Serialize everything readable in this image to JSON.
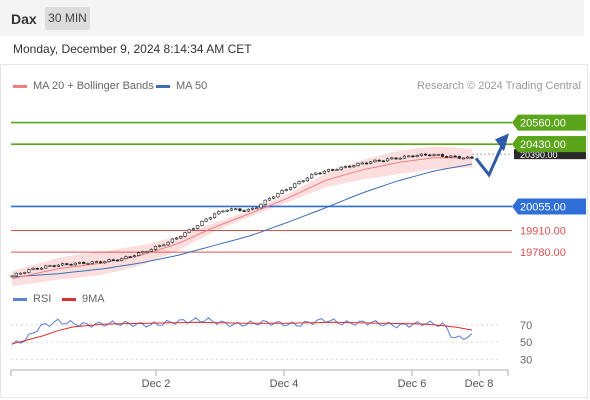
{
  "header": {
    "symbol": "Dax",
    "timeframe": "30 MIN"
  },
  "timestamp": "Monday, December 9, 2024 8:14:34 AM CET",
  "legend": {
    "ma20": "MA 20 + Bollinger Bands",
    "ma50": "MA 50",
    "credit": "Research © 2024 Trading Central"
  },
  "rsi_legend": {
    "rsi": "RSI",
    "ma": "9MA"
  },
  "colors": {
    "up": "#5aa51a",
    "ma20": "#f08080",
    "ma50": "#3a6fb5",
    "support": "#e05050",
    "pivot": "#2f6fd8",
    "rsi": "#5b7fd6",
    "rsi_ma": "#d93030",
    "band": "#fcdede"
  },
  "chart_data": {
    "type": "candlestick",
    "title": "Dax",
    "ylim": [
      19600,
      20720
    ],
    "levels": [
      {
        "value": 20560,
        "label": "20560.00",
        "kind": "resistance"
      },
      {
        "value": 20430,
        "label": "20430.00",
        "kind": "resistance"
      },
      {
        "value": 20055,
        "label": "20055.00",
        "kind": "pivot"
      },
      {
        "value": 19910,
        "label": "19910.00",
        "kind": "support"
      },
      {
        "value": 19780,
        "label": "19780.00",
        "kind": "support"
      }
    ],
    "current_price_label": "20390.00",
    "x_ticks": [
      "Dec 2",
      "Dec 4",
      "Dec 6",
      "Dec 8"
    ],
    "price_path": [
      [
        0,
        19637
      ],
      [
        0.04,
        19675
      ],
      [
        0.09,
        19700
      ],
      [
        0.14,
        19712
      ],
      [
        0.19,
        19720
      ],
      [
        0.24,
        19740
      ],
      [
        0.29,
        19785
      ],
      [
        0.34,
        19840
      ],
      [
        0.38,
        19900
      ],
      [
        0.41,
        19955
      ],
      [
        0.44,
        20010
      ],
      [
        0.47,
        20040
      ],
      [
        0.51,
        20030
      ],
      [
        0.53,
        20048
      ],
      [
        0.56,
        20105
      ],
      [
        0.61,
        20180
      ],
      [
        0.66,
        20255
      ],
      [
        0.72,
        20290
      ],
      [
        0.77,
        20320
      ],
      [
        0.82,
        20340
      ],
      [
        0.87,
        20360
      ],
      [
        0.91,
        20368
      ],
      [
        0.95,
        20355
      ],
      [
        1,
        20345
      ]
    ],
    "ma20_path": [
      [
        0,
        19620
      ],
      [
        0.1,
        19680
      ],
      [
        0.2,
        19715
      ],
      [
        0.28,
        19760
      ],
      [
        0.36,
        19830
      ],
      [
        0.44,
        19930
      ],
      [
        0.52,
        20015
      ],
      [
        0.6,
        20105
      ],
      [
        0.68,
        20210
      ],
      [
        0.76,
        20275
      ],
      [
        0.84,
        20320
      ],
      [
        0.92,
        20350
      ],
      [
        1,
        20345
      ]
    ],
    "ma50_path": [
      [
        0,
        19630
      ],
      [
        0.1,
        19650
      ],
      [
        0.2,
        19680
      ],
      [
        0.28,
        19715
      ],
      [
        0.36,
        19760
      ],
      [
        0.44,
        19820
      ],
      [
        0.52,
        19880
      ],
      [
        0.6,
        19960
      ],
      [
        0.68,
        20045
      ],
      [
        0.76,
        20135
      ],
      [
        0.84,
        20210
      ],
      [
        0.92,
        20270
      ],
      [
        1,
        20310
      ]
    ],
    "forecast_path": [
      [
        20345
      ],
      [
        20245
      ],
      [
        20435
      ]
    ],
    "rsi": {
      "ylim": [
        20,
        85
      ],
      "ticks": [
        70,
        50,
        30
      ],
      "rsi_path": [
        [
          0,
          47
        ],
        [
          0.03,
          53
        ],
        [
          0.06,
          68
        ],
        [
          0.1,
          74
        ],
        [
          0.16,
          70
        ],
        [
          0.23,
          72
        ],
        [
          0.3,
          70
        ],
        [
          0.36,
          74
        ],
        [
          0.42,
          76
        ],
        [
          0.48,
          70
        ],
        [
          0.55,
          73
        ],
        [
          0.62,
          70
        ],
        [
          0.68,
          76
        ],
        [
          0.72,
          72
        ],
        [
          0.78,
          73
        ],
        [
          0.84,
          69
        ],
        [
          0.9,
          72
        ],
        [
          0.94,
          70
        ],
        [
          0.96,
          54
        ],
        [
          1,
          57
        ]
      ],
      "ma_path": [
        [
          0,
          48
        ],
        [
          0.06,
          56
        ],
        [
          0.12,
          67
        ],
        [
          0.2,
          71
        ],
        [
          0.3,
          72
        ],
        [
          0.4,
          73
        ],
        [
          0.5,
          72
        ],
        [
          0.6,
          72
        ],
        [
          0.7,
          73
        ],
        [
          0.8,
          72
        ],
        [
          0.9,
          71
        ],
        [
          0.96,
          68
        ],
        [
          1,
          64
        ]
      ]
    }
  }
}
